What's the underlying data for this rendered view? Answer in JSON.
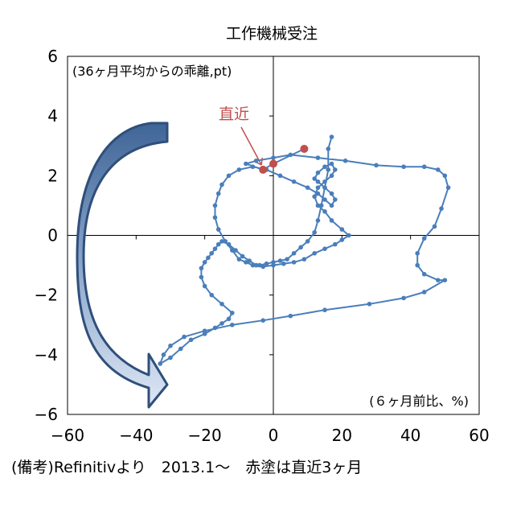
{
  "footer_note": "(備考)Refinitivより　2013.1～　赤塗は直近3ヶ月",
  "chart_data": {
    "type": "line",
    "title": "工作機械受注",
    "ylabel_note": "(36ヶ月平均からの乖離,pt)",
    "xlabel_note": "(６ヶ月前比、%)",
    "annotation": "直近",
    "xlim": [
      -60,
      60
    ],
    "ylim": [
      -6,
      6
    ],
    "xticks": [
      -60,
      -40,
      -20,
      0,
      20,
      40,
      60
    ],
    "yticks": [
      -6,
      -4,
      -2,
      0,
      2,
      4,
      6
    ],
    "grid": false,
    "line_color": "#4a7ebb",
    "highlight_color": "#c0504d",
    "series": [
      {
        "x": [
          -8,
          -5,
          0,
          5,
          13,
          21,
          30,
          38,
          44,
          48,
          50,
          51,
          49,
          47,
          44,
          42,
          42,
          44,
          48,
          50,
          44,
          38,
          28,
          15,
          5,
          -3,
          -12,
          -20,
          -26,
          -30,
          -32,
          -33,
          -30,
          -27,
          -24,
          -20,
          -17,
          -15,
          -13,
          -12,
          -15,
          -18,
          -20,
          -21,
          -21,
          -20,
          -19,
          -18,
          -17,
          -16,
          -15,
          -13,
          -11,
          -9,
          -7,
          -5,
          -3,
          0,
          3,
          6,
          9,
          12,
          15,
          18,
          20,
          22,
          20,
          17,
          15,
          13,
          12,
          13,
          15,
          17,
          18,
          17,
          15,
          13,
          12,
          13,
          15,
          17,
          18,
          17,
          15,
          13,
          10,
          6,
          2,
          -2,
          -6,
          -10,
          -13,
          -15,
          -16,
          -17,
          -17,
          -16,
          -14,
          -12,
          -10,
          -8,
          -6,
          -4,
          -2,
          0,
          2,
          4,
          6,
          8,
          10,
          12,
          13,
          14,
          15,
          16,
          16,
          17
        ],
        "y": [
          2.4,
          2.5,
          2.6,
          2.7,
          2.6,
          2.5,
          2.35,
          2.3,
          2.3,
          2.2,
          2.0,
          1.6,
          0.9,
          0.3,
          -0.1,
          -0.6,
          -1.0,
          -1.3,
          -1.5,
          -1.5,
          -1.9,
          -2.1,
          -2.3,
          -2.5,
          -2.7,
          -2.85,
          -3.0,
          -3.2,
          -3.4,
          -3.7,
          -4.0,
          -4.3,
          -4.1,
          -3.8,
          -3.5,
          -3.3,
          -3.1,
          -2.95,
          -2.8,
          -2.6,
          -2.3,
          -2.0,
          -1.7,
          -1.4,
          -1.1,
          -0.9,
          -0.75,
          -0.6,
          -0.45,
          -0.3,
          -0.2,
          -0.3,
          -0.5,
          -0.7,
          -0.85,
          -1.0,
          -1.05,
          -1.0,
          -0.95,
          -0.9,
          -0.8,
          -0.6,
          -0.45,
          -0.3,
          -0.15,
          0.0,
          0.2,
          0.5,
          0.8,
          1.0,
          1.3,
          1.6,
          1.8,
          2.0,
          2.2,
          2.4,
          2.3,
          2.1,
          1.9,
          1.8,
          1.6,
          1.4,
          1.2,
          1.0,
          1.2,
          1.4,
          1.6,
          1.8,
          2.0,
          2.2,
          2.3,
          2.2,
          2.0,
          1.7,
          1.4,
          1.0,
          0.6,
          0.2,
          -0.2,
          -0.5,
          -0.8,
          -0.9,
          -1.0,
          -1.0,
          -0.95,
          -0.9,
          -0.85,
          -0.8,
          -0.6,
          -0.4,
          -0.2,
          0.1,
          0.5,
          1.0,
          1.6,
          2.2,
          2.9,
          3.3
        ]
      },
      {
        "name": "直近",
        "x": [
          9,
          0,
          -3
        ],
        "y": [
          2.9,
          2.4,
          2.2
        ]
      }
    ]
  }
}
